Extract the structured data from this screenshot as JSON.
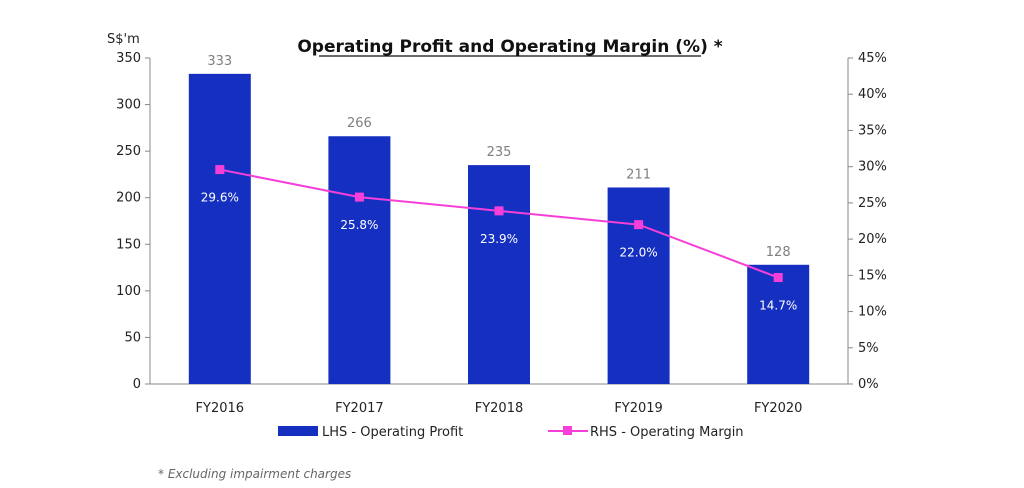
{
  "chart_data": {
    "type": "bar",
    "title": "Operating Profit and Operating Margin (%) *",
    "y_unit_label": "S$'m",
    "categories": [
      "FY2016",
      "FY2017",
      "FY2018",
      "FY2019",
      "FY2020"
    ],
    "series": [
      {
        "name": "LHS - Operating Profit",
        "type": "bar",
        "axis": "left",
        "values": [
          333,
          266,
          235,
          211,
          128
        ],
        "labels": [
          "333",
          "266",
          "235",
          "211",
          "128"
        ],
        "color": "#1530c0"
      },
      {
        "name": "RHS - Operating Margin",
        "type": "line",
        "axis": "right",
        "values": [
          29.6,
          25.8,
          23.9,
          22.0,
          14.7
        ],
        "labels": [
          "29.6%",
          "25.8%",
          "23.9%",
          "22.0%",
          "14.7%"
        ],
        "color": "#f53fd8"
      }
    ],
    "ylim_left": [
      0,
      350
    ],
    "yticks_left": [
      "0",
      "50",
      "100",
      "150",
      "200",
      "250",
      "300",
      "350"
    ],
    "ylim_right": [
      0,
      45
    ],
    "yticks_right": [
      "0%",
      "5%",
      "10%",
      "15%",
      "20%",
      "25%",
      "30%",
      "35%",
      "40%",
      "45%"
    ],
    "grid": false,
    "legend_position": "bottom"
  },
  "footnote": "* Excluding impairment charges"
}
